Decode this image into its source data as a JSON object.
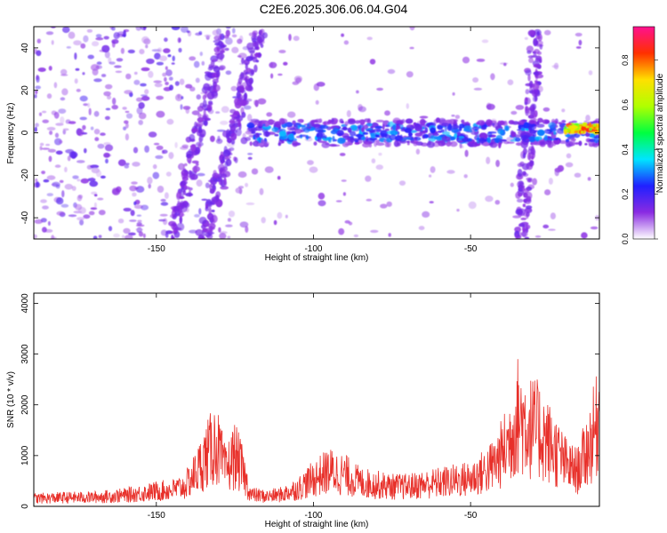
{
  "title": "C2E6.2025.306.06.04.G04",
  "chart_data": [
    {
      "type": "heatmap",
      "xlabel": "Height of straight line (km)",
      "ylabel": "Frequency (Hz)",
      "xlim": [
        -189,
        -9
      ],
      "ylim": [
        -50,
        50
      ],
      "xticks": [
        -150,
        -100,
        -50
      ],
      "yticks": [
        -40,
        -20,
        0,
        20,
        40
      ],
      "colorbar": {
        "label": "Normalized spectral amplitude",
        "range": [
          0,
          0.95
        ],
        "ticks": [
          0,
          0.2,
          0.4,
          0.6,
          0.8
        ],
        "colors": [
          "#ffffff",
          "#8a2be2",
          "#2020ff",
          "#00e5ff",
          "#00ff40",
          "#b0ff00",
          "#ffe000",
          "#ff3000",
          "#ff1090"
        ]
      },
      "features": [
        {
          "kind": "horizontal_band",
          "x": [
            -120,
            -9
          ],
          "frequency": 0,
          "amplitude": 0.25
        },
        {
          "kind": "strong_segment",
          "x": [
            -20,
            -9
          ],
          "frequency": 2,
          "amplitude": 0.9
        },
        {
          "kind": "slanted_stripe",
          "x": [
            -145,
            -128
          ],
          "y": [
            -50,
            48
          ]
        },
        {
          "kind": "slanted_stripe",
          "x": [
            -135,
            -117
          ],
          "y": [
            -50,
            48
          ]
        },
        {
          "kind": "vertical_stripe",
          "x": [
            -34,
            -29
          ],
          "y": [
            -50,
            48
          ]
        }
      ]
    },
    {
      "type": "line",
      "xlabel": "Height of straight line (km)",
      "ylabel": "SNR (10 * v/v)",
      "xlim": [
        -189,
        -9
      ],
      "ylim": [
        0,
        4200
      ],
      "xticks": [
        -150,
        -100,
        -50
      ],
      "yticks": [
        0,
        1000,
        2000,
        3000,
        4000
      ],
      "series": [
        {
          "color": "#e8302a",
          "x": [
            -189,
            -180,
            -170,
            -160,
            -150,
            -145,
            -141,
            -137,
            -134,
            -131,
            -128,
            -125,
            -123,
            -120,
            -115,
            -110,
            -105,
            -100,
            -95,
            -90,
            -85,
            -80,
            -75,
            -70,
            -65,
            -60,
            -55,
            -50,
            -45,
            -42,
            -38,
            -35,
            -31,
            -28,
            -25,
            -22,
            -19,
            -16,
            -13,
            -10,
            -9
          ],
          "values": [
            200,
            220,
            230,
            280,
            380,
            420,
            500,
            900,
            1300,
            1600,
            900,
            1300,
            1000,
            300,
            250,
            300,
            450,
            700,
            900,
            800,
            600,
            550,
            500,
            500,
            550,
            600,
            650,
            700,
            900,
            1100,
            1600,
            2300,
            2000,
            1900,
            1600,
            1300,
            1000,
            900,
            1400,
            2000,
            2500
          ]
        }
      ]
    }
  ]
}
